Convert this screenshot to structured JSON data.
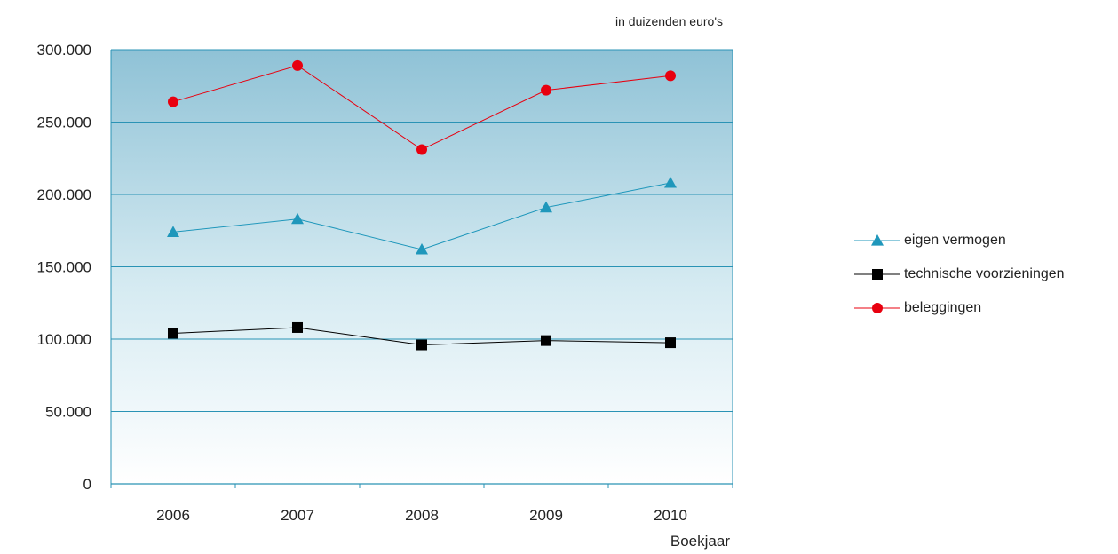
{
  "chart_data": {
    "type": "line",
    "title": "",
    "unit_note": "in duizenden euro's",
    "xlabel": "Boekjaar",
    "ylabel": "",
    "categories": [
      "2006",
      "2007",
      "2008",
      "2009",
      "2010"
    ],
    "ylim": [
      0,
      300000
    ],
    "yticks": [
      0,
      50000,
      100000,
      150000,
      200000,
      250000,
      300000
    ],
    "ytick_labels": [
      "0",
      "50.000",
      "100.000",
      "150.000",
      "200.000",
      "250.000",
      "300.000"
    ],
    "grid": true,
    "legend_position": "right",
    "plot_background": {
      "top": "#8fc2d6",
      "bottom": "#ffffff"
    },
    "series": [
      {
        "name": "eigen vermogen",
        "marker": "triangle",
        "color": "#1f97bb",
        "values": [
          174000,
          183000,
          162000,
          191000,
          208000
        ]
      },
      {
        "name": "technische voorzieningen",
        "marker": "square",
        "color": "#000000",
        "values": [
          104000,
          108000,
          96000,
          99000,
          97500
        ]
      },
      {
        "name": "beleggingen",
        "marker": "circle",
        "color": "#e8000f",
        "values": [
          264000,
          289000,
          231000,
          272000,
          282000
        ]
      }
    ]
  }
}
